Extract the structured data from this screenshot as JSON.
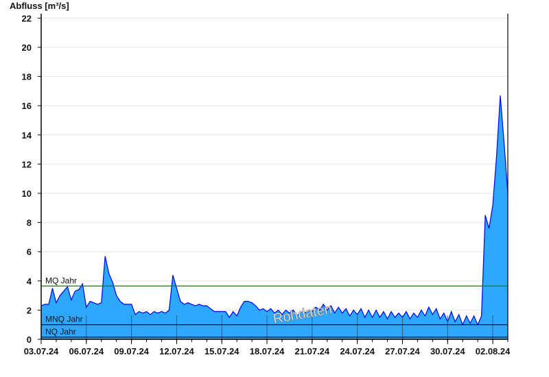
{
  "chart_data": {
    "type": "area",
    "ylabel": "Abfluss [m³/s]",
    "ylim": [
      0,
      22.3
    ],
    "yticks": [
      "0",
      "2",
      "4",
      "6",
      "8",
      "10",
      "12",
      "14",
      "16",
      "18",
      "20",
      "22"
    ],
    "xlim": [
      "2024-07-03T00:00",
      "2024-08-03T00:00"
    ],
    "xtick_labels": [
      "03.07.24",
      "06.07.24",
      "09.07.24",
      "12.07.24",
      "15.07.24",
      "18.07.24",
      "21.07.24",
      "24.07.24",
      "27.07.24",
      "30.07.24",
      "02.08.24"
    ],
    "grid": true,
    "fill_color": "#2ea8ff",
    "line_color": "#0000ee",
    "watermark": "Rohdaten",
    "reference_lines": [
      {
        "label": "MQ Jahr",
        "value": 3.65,
        "color": "#008000"
      },
      {
        "label": "MNQ Jahr",
        "value": 1.0,
        "color": "#000000"
      },
      {
        "label": "NQ Jahr",
        "value": 0.15,
        "color": "#000000"
      }
    ],
    "series": [
      {
        "step_hours": 6,
        "start": "2024-07-03T00:00",
        "values": [
          2.3,
          2.4,
          2.4,
          3.5,
          2.5,
          3.0,
          3.3,
          3.6,
          2.7,
          3.3,
          3.4,
          3.8,
          2.2,
          2.6,
          2.5,
          2.4,
          2.5,
          5.7,
          4.5,
          3.9,
          3.0,
          2.6,
          2.4,
          2.4,
          2.4,
          1.7,
          1.9,
          1.8,
          1.9,
          1.7,
          1.9,
          1.8,
          1.9,
          1.8,
          2.0,
          4.4,
          3.5,
          2.6,
          2.4,
          2.5,
          2.4,
          2.3,
          2.4,
          2.3,
          2.3,
          2.1,
          1.9,
          1.9,
          1.9,
          1.9,
          1.5,
          1.9,
          1.6,
          2.2,
          2.6,
          2.6,
          2.5,
          2.3,
          2.0,
          2.1,
          1.9,
          2.1,
          1.8,
          2.0,
          1.7,
          2.0,
          1.8,
          2.0,
          1.6,
          1.9,
          1.8,
          2.0,
          1.9,
          2.2,
          2.0,
          2.4,
          2.0,
          2.3,
          1.8,
          2.2,
          1.8,
          2.1,
          1.6,
          2.0,
          1.7,
          2.1,
          1.5,
          2.0,
          1.5,
          2.0,
          1.5,
          1.9,
          1.4,
          1.9,
          1.5,
          1.8,
          1.5,
          1.9,
          1.4,
          1.8,
          1.5,
          2.0,
          1.6,
          2.2,
          1.7,
          2.1,
          1.4,
          1.8,
          1.2,
          1.9,
          1.2,
          1.7,
          1.0,
          1.6,
          1.1,
          1.6,
          1.0,
          1.6,
          8.5,
          7.6,
          9.2,
          12.5,
          16.7,
          13.5,
          10.0
        ]
      }
    ]
  }
}
